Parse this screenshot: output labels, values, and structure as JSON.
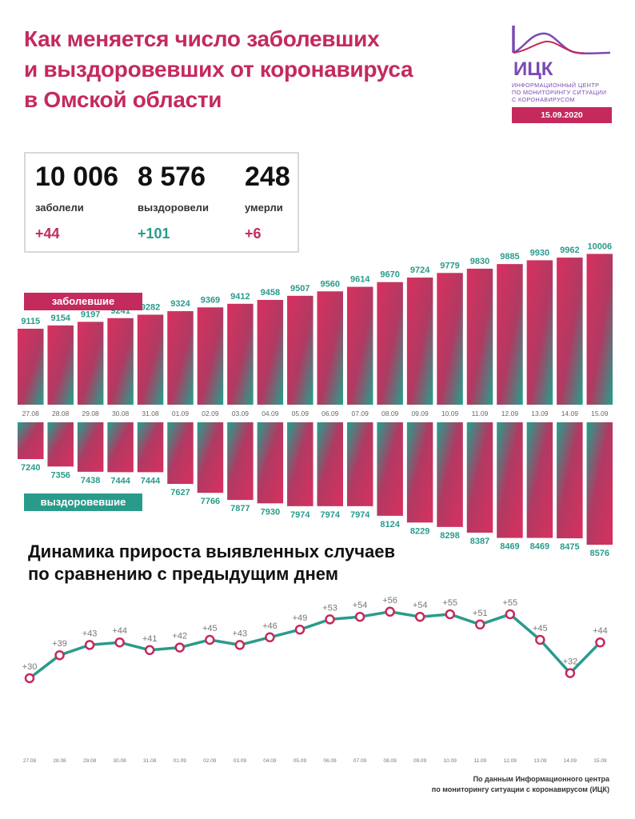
{
  "header": {
    "title_lines": [
      "Как меняется число заболевших",
      "и выздоровевших от коронавируса",
      "в Омской области"
    ]
  },
  "logo": {
    "name": "ИЦК",
    "text_lines": [
      "ИНФОРМАЦИОННЫЙ ЦЕНТР",
      "ПО МОНИТОРИНГУ СИТУАЦИИ",
      "С КОРОНАВИРУСОМ"
    ],
    "date": "15.09.2020"
  },
  "summary": {
    "cases": {
      "value": "10 006",
      "label": "заболели",
      "delta": "+44"
    },
    "recovered": {
      "value": "8 576",
      "label": "выздоровели",
      "delta": "+101"
    },
    "deaths": {
      "value": "248",
      "label": "умерли",
      "delta": "+6"
    }
  },
  "labels": {
    "cases": "заболевшие",
    "recovered": "выздоровевшие"
  },
  "colors": {
    "accent_pink": "#c42a5c",
    "accent_teal": "#2a9b8b",
    "text_dark": "#111111"
  },
  "chart_data": [
    {
      "type": "bar",
      "categories": [
        "27.08",
        "28.08",
        "29.08",
        "30.08",
        "31.08",
        "01.09",
        "02.09",
        "03.09",
        "04.09",
        "05.09",
        "06.09",
        "07.09",
        "08.09",
        "09.09",
        "10.09",
        "11.09",
        "12.09",
        "13.09",
        "14.09",
        "15.09"
      ],
      "series": [
        {
          "name": "заболевшие",
          "values": [
            9115,
            9154,
            9197,
            9241,
            9282,
            9324,
            9369,
            9412,
            9458,
            9507,
            9560,
            9614,
            9670,
            9724,
            9779,
            9830,
            9885,
            9930,
            9962,
            10006
          ]
        },
        {
          "name": "выздоровевшие",
          "values": [
            7240,
            7356,
            7438,
            7444,
            7444,
            7627,
            7766,
            7877,
            7930,
            7974,
            7974,
            7974,
            8124,
            8229,
            8298,
            8387,
            8469,
            8469,
            8475,
            8576
          ]
        }
      ]
    },
    {
      "type": "line",
      "title_lines": [
        "Динамика прироста выявленных случаев",
        "по сравнению с предыдущим днем"
      ],
      "categories": [
        "27.08",
        "28.08",
        "29.08",
        "30.08",
        "31.08",
        "01.09",
        "02.09",
        "03.09",
        "04.09",
        "05.09",
        "06.09",
        "07.09",
        "08.09",
        "09.09",
        "10.09",
        "11.09",
        "12.09",
        "13.09",
        "14.09",
        "15.09"
      ],
      "values": [
        30,
        39,
        43,
        44,
        41,
        42,
        45,
        43,
        46,
        49,
        53,
        54,
        56,
        54,
        55,
        51,
        55,
        45,
        32,
        44
      ],
      "point_labels": [
        "+30",
        "+39",
        "+43",
        "+44",
        "+41",
        "+42",
        "+45",
        "+43",
        "+46",
        "+49",
        "+53",
        "+54",
        "+56",
        "+54",
        "+55",
        "+51",
        "+55",
        "+45",
        "+32",
        "+44"
      ]
    }
  ],
  "source_lines": [
    "По данным Информационного центра",
    "по мониторингу ситуации с коронавирусом (ИЦК)"
  ]
}
